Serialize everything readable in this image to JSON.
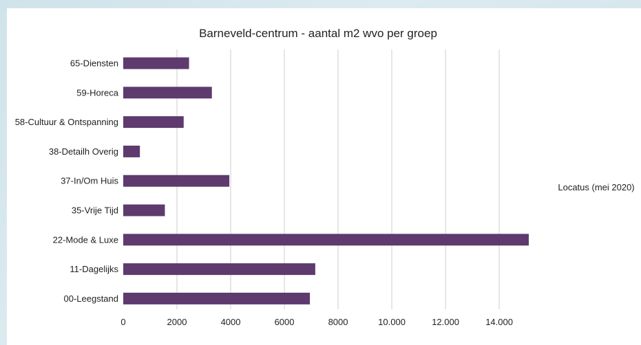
{
  "chart_data": {
    "type": "bar",
    "orientation": "horizontal",
    "title": "Barneveld-centrum - aantal m2 wvo per groep",
    "categories": [
      "65-Diensten",
      "59-Horeca",
      "58-Cultuur & Ontspanning",
      "38-Detailh Overig",
      "37-In/Om Huis",
      "35-Vrije Tijd",
      "22-Mode & Luxe",
      "11-Dagelijks",
      "00-Leegstand"
    ],
    "values": [
      2450,
      3300,
      2250,
      620,
      3950,
      1550,
      15100,
      7150,
      6950
    ],
    "xlim": [
      0,
      16000
    ],
    "xticks": [
      0,
      2000,
      4000,
      6000,
      8000,
      10000,
      12000,
      14000
    ],
    "xtick_labels": [
      "0",
      "2000",
      "4000",
      "6000",
      "8000",
      "10.000",
      "12.000",
      "14.000"
    ],
    "source_note": "Locatus (mei 2020)",
    "grid": "vertical",
    "bar_color": "#5e3a6e"
  }
}
